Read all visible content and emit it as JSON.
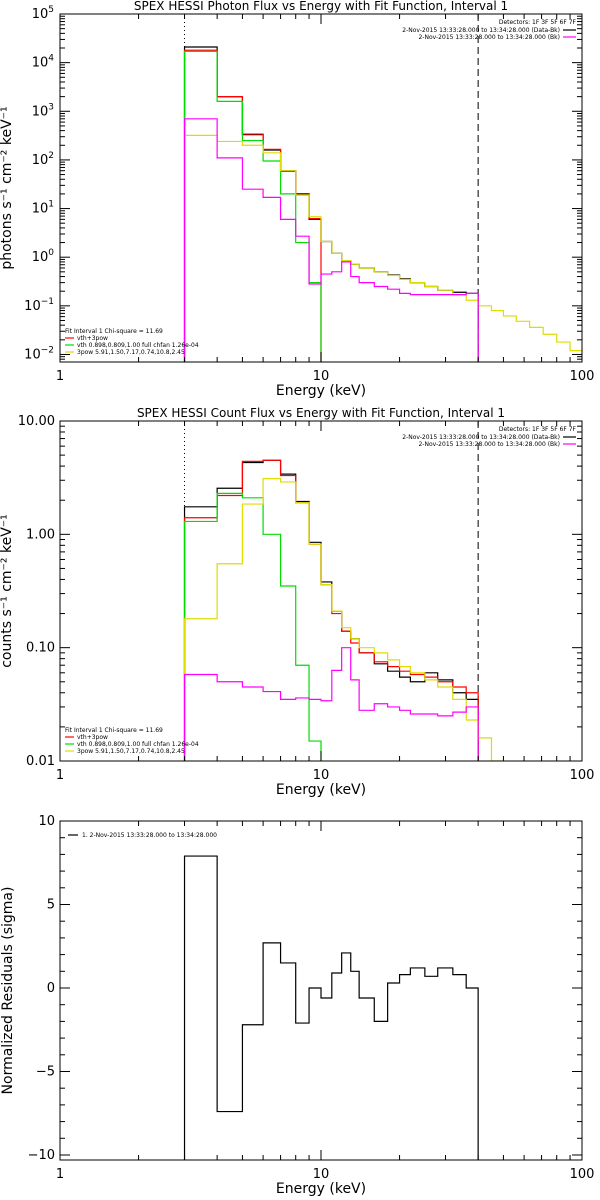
{
  "chart_data": [
    {
      "id": "photon",
      "type": "line",
      "title": "SPEX HESSI Photon Flux vs Energy with Fit Function, Interval 1",
      "xlabel": "Energy (keV)",
      "ylabel": "photons s⁻¹ cm⁻² keV⁻¹",
      "xscale": "log",
      "yscale": "log",
      "xlim": [
        1,
        100
      ],
      "ylim": [
        0.007,
        100000
      ],
      "xticks": [
        {
          "v": 1,
          "label": "1"
        },
        {
          "v": 10,
          "label": "10"
        },
        {
          "v": 100,
          "label": "100"
        }
      ],
      "yticks": [
        {
          "v": 0.01,
          "base": "10",
          "exp": "−2"
        },
        {
          "v": 0.1,
          "base": "10",
          "exp": "−1"
        },
        {
          "v": 1,
          "base": "10",
          "exp": "0"
        },
        {
          "v": 10,
          "base": "10",
          "exp": "1"
        },
        {
          "v": 100,
          "base": "10",
          "exp": "2"
        },
        {
          "v": 1000,
          "base": "10",
          "exp": "3"
        },
        {
          "v": 10000,
          "base": "10",
          "exp": "4"
        },
        {
          "v": 100000,
          "base": "10",
          "exp": "5"
        }
      ],
      "vlines": [
        {
          "x": 3,
          "style": "dotted"
        },
        {
          "x": 40,
          "style": "dashed"
        }
      ],
      "legend_tr": {
        "header": "Detectors: 1F 3F 5F 6F 7F",
        "entries": [
          {
            "text": "2-Nov-2015 13:33:28.000 to 13:34:28.000 (Data-Bk)",
            "color": "#000000"
          },
          {
            "text": "2-Nov-2015 13:33:28.000 to 13:34:28.000 (Bk)",
            "color": "#ff00ff"
          }
        ]
      },
      "legend_bl": {
        "header": "Fit Interval 1    Chi-square = 11.69",
        "entries": [
          {
            "text": "vth+3pow",
            "color": "#ff0000"
          },
          {
            "text": "vth 0.898,0.809,1.00  full chfan 1.26e-04",
            "color": "#00dd00"
          },
          {
            "text": "3pow 5.91,1.50,7.17,0.74,10.8,2.45",
            "color": "#dddd00"
          }
        ]
      },
      "series": [
        {
          "color": "#000000",
          "edges": [
            3,
            4,
            5,
            6,
            7,
            8,
            9,
            10,
            11,
            12,
            13,
            14,
            16,
            18,
            20,
            22,
            25,
            28,
            32,
            36,
            40
          ],
          "values": [
            21000,
            2000,
            330,
            160,
            60,
            20,
            6,
            2.1,
            1.2,
            0.85,
            0.72,
            0.6,
            0.5,
            0.43,
            0.36,
            0.3,
            0.25,
            0.21,
            0.19,
            0.18
          ]
        },
        {
          "color": "#ff0000",
          "edges": [
            3,
            4,
            5,
            6,
            7,
            8,
            9,
            10
          ],
          "values": [
            18000,
            2000,
            340,
            165,
            58,
            19,
            6.2
          ]
        },
        {
          "color": "#00dd00",
          "edges": [
            3,
            4,
            5,
            6,
            7,
            8,
            9,
            10
          ],
          "values": [
            17000,
            1600,
            250,
            95,
            20,
            2,
            0.3
          ]
        },
        {
          "color": "#dddd00",
          "edges": [
            3,
            4,
            5,
            6,
            7,
            8,
            9,
            10,
            11,
            12,
            13,
            14,
            16,
            18,
            20,
            22,
            25,
            28,
            32,
            36,
            40,
            45,
            50,
            56,
            63,
            71,
            80,
            90,
            100
          ],
          "values": [
            320,
            240,
            200,
            140,
            60,
            19,
            6.8,
            2.1,
            1.2,
            0.85,
            0.72,
            0.6,
            0.5,
            0.42,
            0.35,
            0.3,
            0.25,
            0.21,
            0.17,
            0.13,
            0.1,
            0.08,
            0.062,
            0.048,
            0.036,
            0.026,
            0.018,
            0.012
          ]
        },
        {
          "color": "#ff00ff",
          "edges": [
            3,
            4,
            5,
            6,
            7,
            8,
            9,
            10,
            11,
            12,
            13,
            14,
            16,
            18,
            20,
            22,
            25,
            28,
            32,
            36,
            40
          ],
          "values": [
            700,
            110,
            25,
            17,
            6,
            2.7,
            0.28,
            0.45,
            0.5,
            0.8,
            0.4,
            0.3,
            0.25,
            0.22,
            0.18,
            0.17,
            0.17,
            0.17,
            0.17,
            0.18
          ]
        }
      ]
    },
    {
      "id": "count",
      "type": "line",
      "title": "SPEX HESSI Count Flux vs Energy with Fit Function, Interval 1",
      "xlabel": "Energy (keV)",
      "ylabel": "counts s⁻¹ cm⁻² keV⁻¹",
      "xscale": "log",
      "yscale": "log",
      "xlim": [
        1,
        100
      ],
      "ylim": [
        0.01,
        10
      ],
      "xticks": [
        {
          "v": 1,
          "label": "1"
        },
        {
          "v": 10,
          "label": "10"
        },
        {
          "v": 100,
          "label": "100"
        }
      ],
      "yticks": [
        {
          "v": 0.01,
          "label": "0.01"
        },
        {
          "v": 0.1,
          "label": "0.10"
        },
        {
          "v": 1,
          "label": "1.00"
        },
        {
          "v": 10,
          "label": "10.00"
        }
      ],
      "vlines": [
        {
          "x": 3,
          "style": "dotted"
        },
        {
          "x": 40,
          "style": "dashed"
        }
      ],
      "legend_tr": {
        "header": "Detectors: 1F 3F 5F 6F 7F",
        "entries": [
          {
            "text": "2-Nov-2015 13:33:28.000 to 13:34:28.000 (Data-Bk)",
            "color": "#000000"
          },
          {
            "text": "2-Nov-2015 13:33:28.000 to 13:34:28.000 (Bk)",
            "color": "#ff00ff"
          }
        ]
      },
      "legend_bl": {
        "header": "Fit Interval 1    Chi-square = 11.69",
        "entries": [
          {
            "text": "vth+3pow",
            "color": "#ff0000"
          },
          {
            "text": "vth 0.898,0.809,1.00  full chfan 1.26e-04",
            "color": "#00dd00"
          },
          {
            "text": "3pow 5.91,1.50,7.17,0.74,10.8,2.45",
            "color": "#dddd00"
          }
        ]
      },
      "series": [
        {
          "color": "#000000",
          "edges": [
            3,
            4,
            5,
            6,
            7,
            8,
            9,
            10,
            11,
            12,
            13,
            14,
            16,
            18,
            20,
            22,
            25,
            28,
            32,
            36,
            40
          ],
          "values": [
            1.75,
            2.55,
            4.3,
            4.5,
            3.4,
            1.95,
            0.85,
            0.38,
            0.21,
            0.14,
            0.12,
            0.09,
            0.072,
            0.062,
            0.055,
            0.05,
            0.06,
            0.052,
            0.04,
            0.035
          ]
        },
        {
          "color": "#ff0000",
          "edges": [
            3,
            4,
            5,
            6,
            7,
            8,
            9,
            10,
            11,
            12,
            13,
            14,
            16,
            18,
            20,
            22,
            25,
            28,
            32,
            36,
            40
          ],
          "values": [
            1.4,
            2.2,
            4.4,
            4.5,
            3.3,
            1.9,
            0.82,
            0.36,
            0.2,
            0.14,
            0.11,
            0.09,
            0.075,
            0.068,
            0.062,
            0.058,
            0.055,
            0.05,
            0.045,
            0.04
          ]
        },
        {
          "color": "#00dd00",
          "edges": [
            3,
            4,
            5,
            6,
            7,
            8,
            9,
            10
          ],
          "values": [
            1.3,
            2.3,
            2.1,
            1.0,
            0.35,
            0.07,
            0.015
          ]
        },
        {
          "color": "#dddd00",
          "edges": [
            3,
            4,
            5,
            6,
            7,
            8,
            9,
            10,
            11,
            12,
            13,
            14,
            16,
            18,
            20,
            22,
            25,
            28,
            32,
            36,
            40,
            45,
            50
          ],
          "values": [
            0.18,
            0.55,
            1.85,
            3.1,
            2.9,
            1.9,
            0.82,
            0.36,
            0.21,
            0.15,
            0.12,
            0.1,
            0.09,
            0.078,
            0.068,
            0.06,
            0.052,
            0.045,
            0.035,
            0.023,
            0.016,
            0.01
          ]
        },
        {
          "color": "#ff00ff",
          "edges": [
            3,
            4,
            5,
            6,
            7,
            8,
            9,
            10,
            11,
            12,
            13,
            14,
            16,
            18,
            20,
            22,
            25,
            28,
            32,
            36,
            40
          ],
          "values": [
            0.058,
            0.05,
            0.045,
            0.041,
            0.035,
            0.036,
            0.035,
            0.034,
            0.063,
            0.1,
            0.052,
            0.028,
            0.032,
            0.03,
            0.028,
            0.026,
            0.026,
            0.025,
            0.027,
            0.03
          ]
        }
      ]
    },
    {
      "id": "residuals",
      "type": "line",
      "title": "",
      "xlabel": "Energy (keV)",
      "ylabel": "Normalized Residuals (sigma)",
      "xscale": "log",
      "yscale": "linear",
      "xlim": [
        1,
        100
      ],
      "ylim": [
        -10.3,
        10
      ],
      "xticks": [
        {
          "v": 1,
          "label": "1"
        },
        {
          "v": 10,
          "label": "10"
        },
        {
          "v": 100,
          "label": "100"
        }
      ],
      "yticks": [
        {
          "v": -10,
          "label": "−10"
        },
        {
          "v": -5,
          "label": "−5"
        },
        {
          "v": 0,
          "label": "0"
        },
        {
          "v": 5,
          "label": "5"
        },
        {
          "v": 10,
          "label": "10"
        }
      ],
      "vlines": [],
      "legend_tl": {
        "entries": [
          {
            "text": "1.  2-Nov-2015 13:33:28.000 to 13:34:28.000",
            "color": "#000000"
          }
        ]
      },
      "series": [
        {
          "color": "#000000",
          "drop_to": -10.3,
          "edges": [
            3,
            4,
            5,
            6,
            7,
            8,
            9,
            10,
            11,
            12,
            13,
            14,
            16,
            18,
            20,
            22,
            25,
            28,
            32,
            36,
            40
          ],
          "values": [
            7.9,
            -7.4,
            -2.2,
            2.7,
            1.5,
            -2.1,
            0.0,
            -0.6,
            0.9,
            2.1,
            1.0,
            -0.6,
            -2.0,
            0.3,
            0.8,
            1.2,
            0.7,
            1.2,
            0.8,
            0.0
          ]
        }
      ]
    }
  ]
}
